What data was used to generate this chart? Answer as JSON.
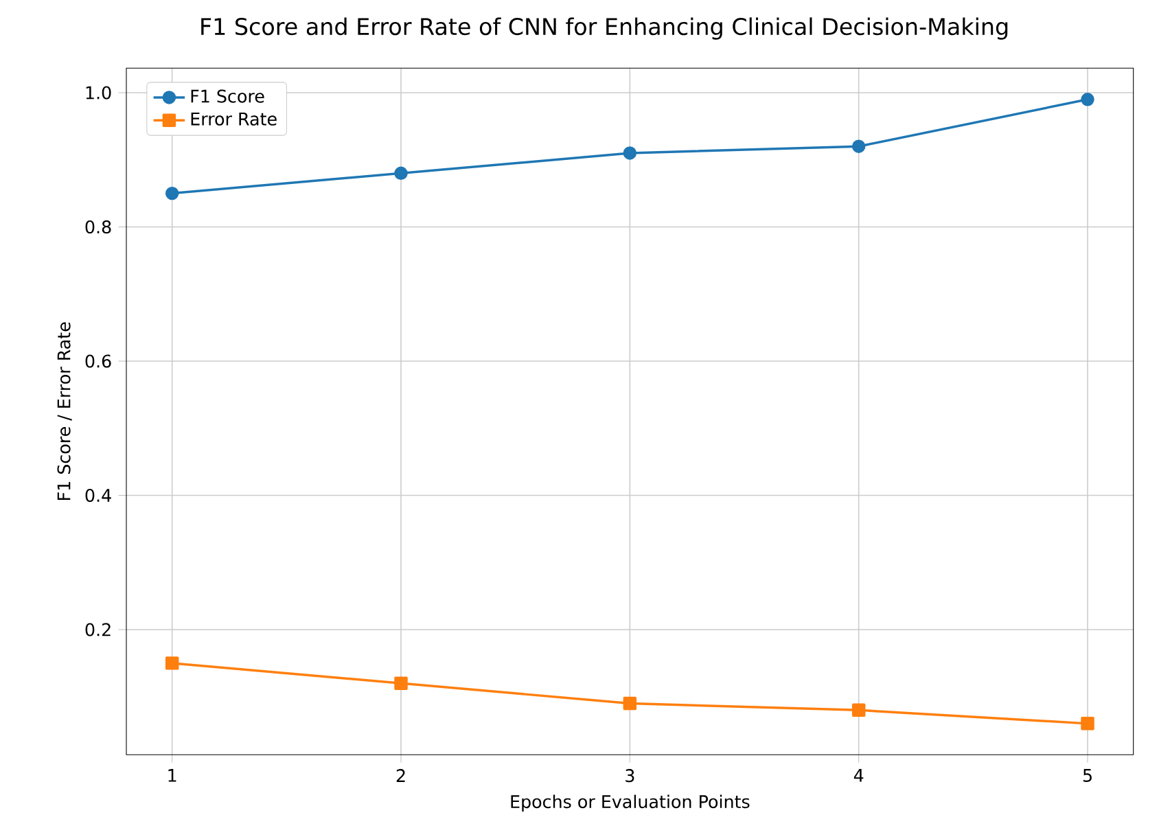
{
  "chart_data": {
    "type": "line",
    "title": "F1 Score and Error Rate of CNN for Enhancing Clinical Decision-Making",
    "xlabel": "Epochs or Evaluation Points",
    "ylabel": "F1 Score / Error Rate",
    "x": [
      1,
      2,
      3,
      4,
      5
    ],
    "series": [
      {
        "name": "F1 Score",
        "color": "#1f77b4",
        "marker": "circle",
        "values": [
          0.85,
          0.88,
          0.91,
          0.92,
          0.99
        ]
      },
      {
        "name": "Error Rate",
        "color": "#ff7f0e",
        "marker": "square",
        "values": [
          0.15,
          0.12,
          0.09,
          0.08,
          0.06
        ]
      }
    ],
    "xlim": [
      0.8,
      5.2
    ],
    "ylim": [
      0.0135,
      1.0365
    ],
    "xticks": [
      1,
      2,
      3,
      4,
      5
    ],
    "yticks": [
      0.2,
      0.4,
      0.6,
      0.8,
      {
        "value": 1,
        "label": "1.0"
      }
    ],
    "grid": true,
    "legend": "top left",
    "line_style": "solid"
  }
}
